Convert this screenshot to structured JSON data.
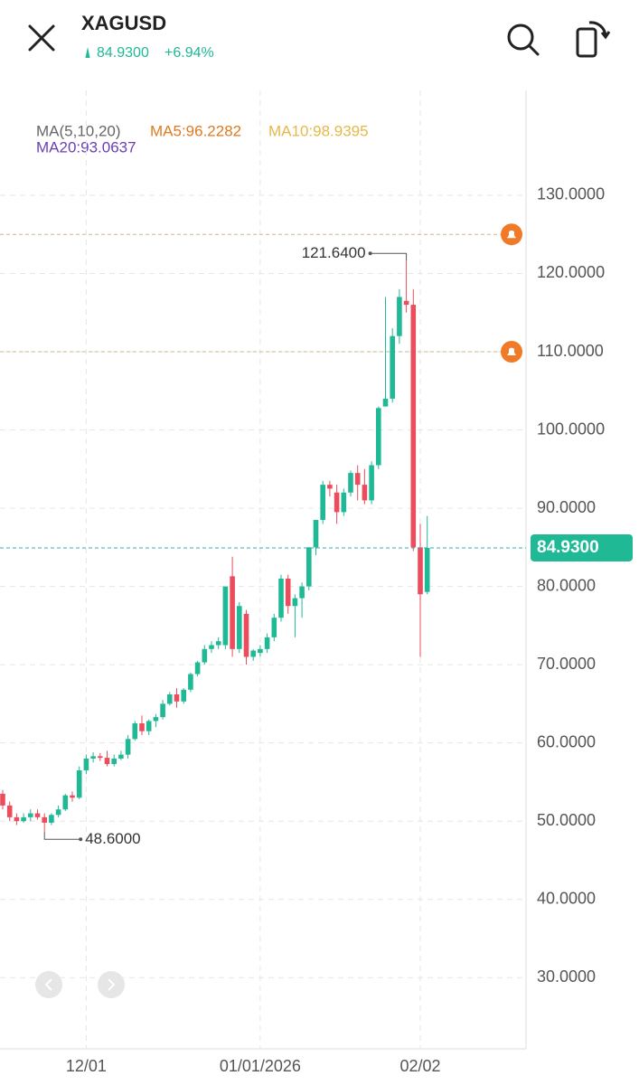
{
  "header": {
    "title": "XAGUSD",
    "price": "84.9300",
    "change": "+6.94%"
  },
  "indicators": {
    "name": "MA(5,10,20)",
    "ma5": "MA5:96.2282",
    "ma10": "MA10:98.9395",
    "ma20": "MA20:93.0637"
  },
  "chart_data": {
    "type": "candlestick",
    "categories": [
      null,
      null,
      null,
      null,
      null,
      null,
      null,
      null,
      null,
      null,
      null,
      null,
      "12/01",
      null,
      null,
      null,
      null,
      null,
      null,
      null,
      null,
      null,
      null,
      null,
      null,
      null,
      null,
      null,
      null,
      null,
      null,
      null,
      null,
      null,
      null,
      null,
      null,
      "01/01/2026",
      null,
      null,
      null,
      null,
      null,
      null,
      null,
      null,
      null,
      null,
      null,
      null,
      null,
      null,
      null,
      null,
      null,
      null,
      null,
      null,
      null,
      null,
      "02/02",
      null
    ],
    "open": [
      53.5,
      52,
      50.5,
      50,
      50.5,
      51,
      50.5,
      49.8,
      50.8,
      51.5,
      53.3,
      53,
      56.5,
      58,
      58.3,
      58.1,
      57.3,
      58,
      58.5,
      60.5,
      62.5,
      61.5,
      62.8,
      63.3,
      65,
      66.2,
      65.3,
      66.8,
      68.8,
      70.3,
      72,
      72.5,
      72.5,
      81.3,
      72,
      76.5,
      71,
      71.5,
      72,
      73.5,
      76,
      81,
      77.5,
      78.5,
      80,
      85,
      88.5,
      93,
      92,
      89.5,
      92,
      94.5,
      93,
      91,
      95.5,
      103,
      104,
      112,
      116.5,
      116,
      85,
      79.3
    ],
    "high": [
      54,
      52.5,
      51,
      51,
      51.5,
      51.5,
      51,
      51,
      52,
      53.5,
      53.8,
      57,
      58.5,
      58.8,
      58.7,
      59,
      58.5,
      59,
      61,
      62.8,
      63.5,
      63,
      63.7,
      65.5,
      66.5,
      67,
      67,
      69,
      70.5,
      72.5,
      73,
      73.5,
      80,
      83.8,
      78,
      77,
      72,
      72.5,
      74,
      76.5,
      81.5,
      81.5,
      79,
      80.5,
      85,
      88.5,
      93.5,
      93.5,
      93,
      92.5,
      94.8,
      95.5,
      95,
      96,
      103,
      117,
      113,
      118,
      121.64,
      118,
      88,
      89
    ],
    "low": [
      51.5,
      50,
      49.5,
      49.8,
      50,
      50.2,
      48.6,
      49.5,
      50.5,
      51.3,
      52.5,
      52.8,
      56,
      57.5,
      57.7,
      57,
      57,
      57.8,
      58,
      60.3,
      61,
      61,
      62,
      63,
      64.8,
      64.5,
      65,
      66.5,
      68.5,
      70,
      71.5,
      72,
      72,
      71,
      71.5,
      70,
      70.5,
      71,
      71.5,
      73,
      75.5,
      76.5,
      73.5,
      76,
      79.5,
      84,
      88,
      91.5,
      88,
      89,
      91.5,
      91,
      90.5,
      90.5,
      95,
      103,
      103.5,
      111,
      115,
      84.5,
      71,
      79
    ],
    "close": [
      52,
      50.5,
      50,
      50.5,
      51,
      50.5,
      49.8,
      50.8,
      51.5,
      53.3,
      53,
      56.5,
      58,
      58.3,
      58.1,
      57.3,
      58,
      58.5,
      60.5,
      62.5,
      61.5,
      62.8,
      63.3,
      65,
      66.2,
      65.3,
      66.8,
      68.8,
      70.3,
      72,
      72.5,
      73,
      80,
      72,
      77.5,
      71,
      71.8,
      72,
      73.5,
      76,
      81,
      77.5,
      78.5,
      80,
      85,
      88.5,
      93,
      92.5,
      89.5,
      92,
      94.5,
      93,
      91,
      95.5,
      102.8,
      104,
      112,
      117,
      116,
      85,
      79,
      84.93
    ],
    "up_color": "#1fb996",
    "down_color": "#ea4d5c",
    "ylim": [
      20.9,
      143.4
    ],
    "yticks": [
      {
        "value": 30,
        "label": "30.0000"
      },
      {
        "value": 40,
        "label": "40.0000"
      },
      {
        "value": 50,
        "label": "50.0000"
      },
      {
        "value": 60,
        "label": "60.0000"
      },
      {
        "value": 70,
        "label": "70.0000"
      },
      {
        "value": 80,
        "label": "80.0000"
      },
      {
        "value": 90,
        "label": "90.0000"
      },
      {
        "value": 100,
        "label": "100.0000"
      },
      {
        "value": 110,
        "label": "110.0000"
      },
      {
        "value": 120,
        "label": "120.0000"
      },
      {
        "value": 130,
        "label": "130.0000"
      }
    ],
    "grid": true,
    "current": {
      "value": 84.93,
      "label": "84.9300"
    },
    "alerts": [
      125,
      110
    ],
    "annotations": [
      {
        "value": 121.64,
        "label": "121.6400"
      },
      {
        "value": 48.6,
        "label": "48.6000"
      }
    ]
  }
}
